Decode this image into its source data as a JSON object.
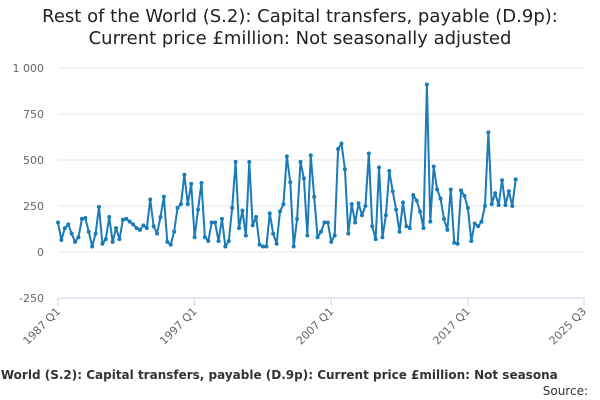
{
  "title_line1": "Rest of the World (S.2): Capital transfers, payable (D.9p):",
  "title_line2": "Current price £million: Not seasonally adjusted",
  "legend_text": "he World (S.2): Capital transfers, payable (D.9p): Current price £million: Not seasona",
  "source_label": "Source:",
  "colors": {
    "series": "#1a7bb9",
    "grid": "#e6e6e6",
    "axis_text": "#666666"
  },
  "chart_data": {
    "type": "line",
    "title": "Rest of the World (S.2): Capital transfers, payable (D.9p): Current price £million: Not seasonally adjusted",
    "xlabel": "",
    "ylabel": "",
    "ylim": [
      -250,
      1000
    ],
    "y_ticks": [
      -250,
      0,
      250,
      500,
      750,
      1000
    ],
    "y_tick_labels": [
      "-250",
      "0",
      "250",
      "500",
      "750",
      "1 000"
    ],
    "x_tick_labels": [
      "1987 Q1",
      "1997 Q1",
      "2007 Q1",
      "2017 Q1",
      "2025 Q3"
    ],
    "start": "1987 Q1",
    "grid": true,
    "series": [
      {
        "name": "Rest of the World (S.2): Capital transfers, payable (D.9p): Current price £million: Not seasonally adjusted",
        "values": [
          160,
          65,
          130,
          150,
          100,
          55,
          80,
          180,
          185,
          110,
          30,
          100,
          245,
          45,
          70,
          190,
          55,
          130,
          70,
          175,
          180,
          165,
          150,
          130,
          120,
          145,
          130,
          285,
          140,
          100,
          190,
          300,
          55,
          40,
          110,
          240,
          260,
          420,
          260,
          370,
          80,
          230,
          375,
          80,
          60,
          160,
          160,
          60,
          180,
          30,
          60,
          240,
          490,
          130,
          225,
          90,
          490,
          145,
          190,
          40,
          30,
          30,
          210,
          100,
          45,
          220,
          260,
          520,
          380,
          30,
          180,
          490,
          400,
          90,
          525,
          300,
          80,
          110,
          160,
          160,
          55,
          90,
          560,
          590,
          450,
          100,
          260,
          160,
          265,
          200,
          250,
          535,
          140,
          70,
          460,
          80,
          200,
          440,
          330,
          230,
          110,
          270,
          140,
          130,
          310,
          280,
          220,
          130,
          910,
          165,
          465,
          340,
          290,
          180,
          120,
          340,
          50,
          45,
          335,
          305,
          240,
          60,
          155,
          140,
          165,
          250,
          650,
          260,
          320,
          255,
          390,
          255,
          330,
          250,
          395
        ]
      }
    ]
  }
}
